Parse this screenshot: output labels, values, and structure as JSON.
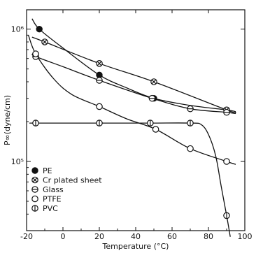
{
  "chart_data": {
    "type": "scatter",
    "title": "",
    "xlabel": "Temperature (°C)",
    "ylabel": "P∞(dyne/cm)",
    "xlim": [
      -20,
      100
    ],
    "ylim": [
      30000,
      1400000
    ],
    "yscale": "log",
    "grid": false,
    "legend_position": "bottom-left",
    "x_ticks": [
      -20,
      0,
      20,
      40,
      60,
      80,
      100
    ],
    "x_tick_labels": [
      "-20",
      "0",
      "20",
      "40",
      "60",
      "80",
      "100"
    ],
    "y_ticks": [
      100000,
      1000000
    ],
    "y_tick_labels": [
      "10⁵",
      "10⁶"
    ],
    "series": [
      {
        "name": "PE",
        "marker": "filled",
        "x": [
          -13,
          20,
          50,
          90
        ],
        "y": [
          1000000,
          450000,
          300000,
          245000
        ],
        "curve_x": [
          -17,
          -13,
          0,
          20,
          35,
          50,
          70,
          90,
          95
        ],
        "curve_y": [
          1200000,
          1000000,
          720000,
          450000,
          360000,
          300000,
          265000,
          245000,
          238000
        ]
      },
      {
        "name": "Cr plated sheet",
        "marker": "crossed",
        "x": [
          -10,
          20,
          50,
          90
        ],
        "y": [
          800000,
          550000,
          400000,
          245000
        ],
        "curve_x": [
          -17,
          -10,
          20,
          50,
          90,
          95
        ],
        "curve_y": [
          870000,
          800000,
          550000,
          400000,
          245000,
          235000
        ]
      },
      {
        "name": "Glass",
        "marker": "horizontal-bar",
        "x": [
          -15,
          20,
          49,
          70,
          90
        ],
        "y": [
          620000,
          410000,
          300000,
          250000,
          235000
        ],
        "curve_x": [
          -17,
          -15,
          0,
          20,
          49,
          70,
          90,
          95
        ],
        "curve_y": [
          650000,
          620000,
          520000,
          410000,
          300000,
          250000,
          235000,
          230000
        ]
      },
      {
        "name": "PTFE",
        "marker": "open",
        "x": [
          -15,
          20,
          51,
          70,
          90
        ],
        "y": [
          650000,
          260000,
          175000,
          125000,
          100000
        ],
        "curve_x": [
          -19,
          -15,
          -5,
          5,
          20,
          35,
          51,
          70,
          90,
          95
        ],
        "curve_y": [
          900000,
          650000,
          420000,
          320000,
          260000,
          210000,
          175000,
          125000,
          100000,
          95000
        ]
      },
      {
        "name": "PVC",
        "marker": "vertical-bar",
        "x": [
          -15,
          20,
          48,
          70,
          90
        ],
        "y": [
          195000,
          195000,
          195000,
          195000,
          39000
        ],
        "curve_x": [
          -17,
          -15,
          20,
          48,
          70,
          76,
          80,
          84,
          87,
          90,
          92
        ],
        "curve_y": [
          195000,
          195000,
          195000,
          195000,
          195000,
          190000,
          160000,
          110000,
          65000,
          39000,
          27000
        ]
      }
    ]
  }
}
